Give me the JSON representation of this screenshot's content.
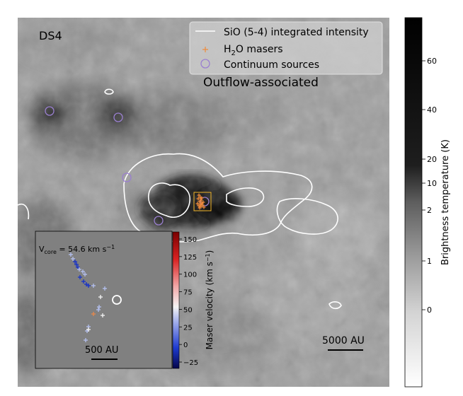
{
  "panel_label": "DS4",
  "subtitle": "Outflow-associated",
  "legend": {
    "items": [
      {
        "label": "SiO (5-4) integrated intensity",
        "marker": "line",
        "color": "#ffffff"
      },
      {
        "label_prefix": "H",
        "label_sub": "2",
        "label_suffix": "O masers",
        "marker": "plus",
        "color": "#f08a3a"
      },
      {
        "label": "Continuum sources",
        "marker": "circle",
        "color": "#9a7fd0"
      }
    ]
  },
  "main_scalebar": {
    "label": "5000 AU"
  },
  "colorbar": {
    "label": "Brightness temperature (K)",
    "ticks": [
      "60",
      "40",
      "20",
      "10",
      "2",
      "1",
      "0"
    ]
  },
  "inset": {
    "vcore_prefix": "V",
    "vcore_sub": "core",
    "vcore_value": " = 54.6 km s",
    "vcore_sup": "−1",
    "scalebar_label": "500 AU",
    "colorbar_label_main": "Maser velocity (km s",
    "colorbar_label_sup": "−1",
    "colorbar_label_end": ")",
    "colorbar_ticks": [
      "150",
      "125",
      "100",
      "75",
      "50",
      "25",
      "0",
      "−25"
    ],
    "colorbar_range": [
      -30,
      155
    ]
  },
  "colors": {
    "maser": "#f08a3a",
    "continuum": "#9a7fd0",
    "contour": "#ffffff"
  }
}
